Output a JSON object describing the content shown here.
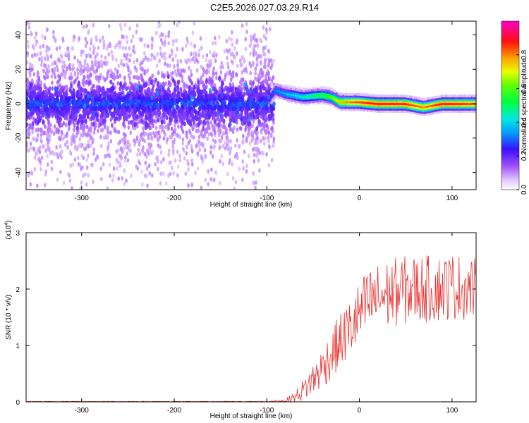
{
  "title": "C2E5.2026.027.03.29.R14",
  "chart_data": [
    {
      "type": "heatmap",
      "xlabel": "Height of straight line (km)",
      "ylabel": "Frequency (Hz)",
      "xlim": [
        -360,
        126
      ],
      "ylim": [
        -50,
        48
      ],
      "x_ticks": [
        -300,
        -200,
        -100,
        0,
        100
      ],
      "x_tick_labels": [
        "-300",
        "-200",
        "-100",
        "0",
        "100"
      ],
      "y_ticks": [
        -40,
        -20,
        0,
        20,
        40
      ],
      "y_tick_labels": [
        "-40",
        "-20",
        "0",
        "20",
        "40"
      ],
      "colorbar": {
        "label": "Normalized spectral amplitude",
        "range": [
          0,
          1
        ],
        "ticks": [
          0.0,
          0.2,
          0.4,
          0.6,
          0.8
        ],
        "tick_labels": [
          "0.0",
          "0.2",
          "0.4",
          "0.6",
          "0.8"
        ],
        "colormap": [
          "#ffffff",
          "#d8b4ff",
          "#8a2be2",
          "#3300ff",
          "#00ccff",
          "#00ff66",
          "#66ff00",
          "#ffff00",
          "#ff8800",
          "#ff0000",
          "#ff00cc"
        ]
      },
      "ridge_center": [
        [
          -360,
          0
        ],
        [
          -100,
          0
        ],
        [
          -90,
          8
        ],
        [
          -80,
          6
        ],
        [
          -60,
          4
        ],
        [
          -40,
          5
        ],
        [
          -30,
          4
        ],
        [
          -20,
          1
        ],
        [
          0,
          1
        ],
        [
          20,
          0
        ],
        [
          50,
          0
        ],
        [
          70,
          -2
        ],
        [
          90,
          0
        ],
        [
          110,
          0
        ],
        [
          126,
          0
        ]
      ],
      "ridge_peak_amplitude": [
        [
          -360,
          0.16
        ],
        [
          -100,
          0.2
        ],
        [
          -90,
          0.33
        ],
        [
          -60,
          0.45
        ],
        [
          -30,
          0.6
        ],
        [
          -20,
          0.75
        ],
        [
          0,
          0.85
        ],
        [
          20,
          0.9
        ],
        [
          50,
          0.88
        ],
        [
          70,
          0.8
        ],
        [
          90,
          0.9
        ],
        [
          126,
          0.85
        ]
      ]
    },
    {
      "type": "line",
      "xlabel": "Height of straight line (km)",
      "ylabel": "SNR (10 * v/v)",
      "y_scale_label": "(x10^4)",
      "y_scale_base": "x10",
      "y_scale_exp": "4",
      "xlim": [
        -360,
        126
      ],
      "ylim": [
        0,
        3
      ],
      "x_ticks": [
        -300,
        -200,
        -100,
        0,
        100
      ],
      "x_tick_labels": [
        "-300",
        "-200",
        "-100",
        "0",
        "100"
      ],
      "y_ticks": [
        0,
        1,
        2,
        3
      ],
      "y_tick_labels": [
        "0",
        "1",
        "2",
        "3"
      ],
      "color": "#e83030",
      "envelope": {
        "x": [
          -360,
          -100,
          -80,
          -70,
          -60,
          -50,
          -40,
          -30,
          -20,
          -10,
          0,
          10,
          20,
          40,
          60,
          80,
          100,
          126
        ],
        "mean": [
          0.005,
          0.005,
          0.02,
          0.08,
          0.22,
          0.4,
          0.6,
          0.85,
          1.1,
          1.3,
          1.55,
          1.75,
          1.85,
          1.95,
          2.0,
          2.0,
          2.05,
          2.0
        ],
        "amp": [
          0.005,
          0.006,
          0.03,
          0.1,
          0.2,
          0.3,
          0.38,
          0.45,
          0.5,
          0.55,
          0.6,
          0.62,
          0.62,
          0.62,
          0.62,
          0.6,
          0.6,
          0.55
        ]
      },
      "samples_per_unit": 1.3
    }
  ]
}
